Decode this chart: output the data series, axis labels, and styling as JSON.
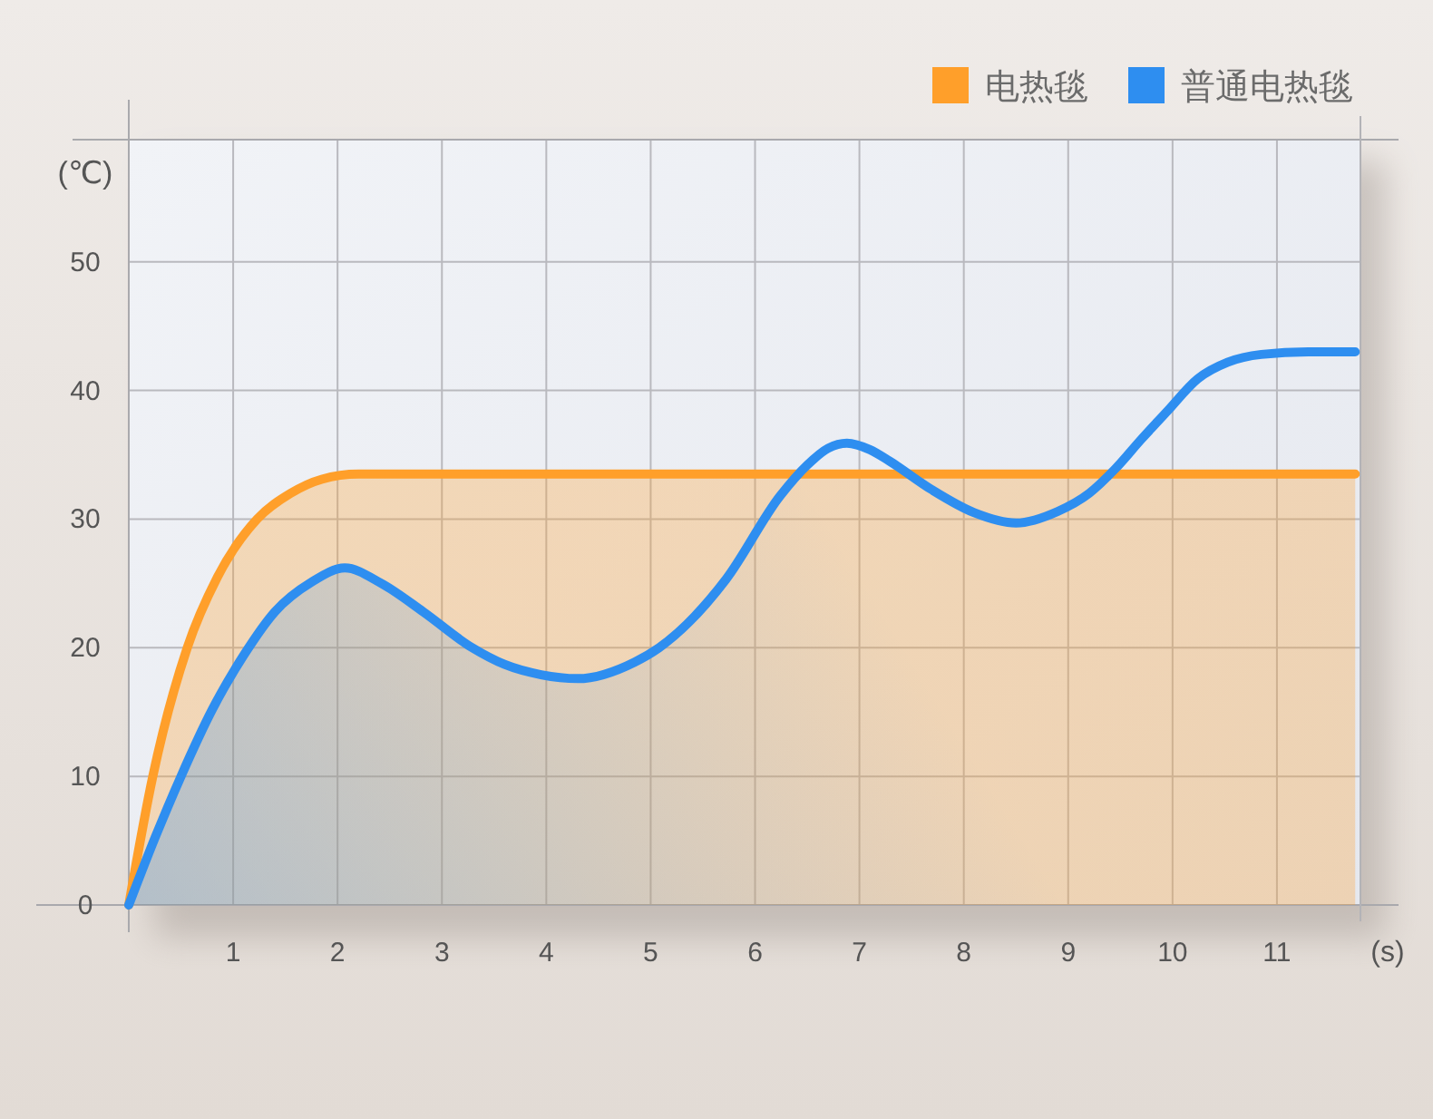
{
  "chart_data": {
    "type": "area",
    "xlabel": "(s)",
    "ylabel": "(℃)",
    "xlim": [
      0,
      11.8
    ],
    "ylim": [
      0,
      59.5
    ],
    "xticks": [
      1,
      2,
      3,
      4,
      5,
      6,
      7,
      8,
      9,
      10,
      11
    ],
    "yticks": [
      0,
      10,
      20,
      30,
      40,
      50
    ],
    "grid": true,
    "legend": "top right",
    "series": [
      {
        "name": "电热毯",
        "color": "#ff9f2a",
        "x": [
          0,
          0.23,
          0.56,
          0.85,
          1.23,
          1.55,
          1.85,
          2.2,
          4,
          6,
          8,
          10,
          11.75
        ],
        "values": [
          0,
          10,
          20,
          25.5,
          30,
          32,
          33.1,
          33.5,
          33.5,
          33.5,
          33.5,
          33.5,
          33.5
        ]
      },
      {
        "name": "普通电热毯",
        "color": "#2e8ef0",
        "x": [
          0,
          0.25,
          0.5,
          0.8,
          1.1,
          1.4,
          1.75,
          2.07,
          2.42,
          2.82,
          3.29,
          3.6,
          3.95,
          4.3,
          4.85,
          5.08,
          5.72,
          6.24,
          6.5,
          6.7,
          6.88,
          7.1,
          7.29,
          7.69,
          8.1,
          8.5,
          8.9,
          9.2,
          9.45,
          9.7,
          9.95,
          10.24,
          10.53,
          10.85,
          11.3,
          11.75
        ],
        "values": [
          0,
          5.2,
          10,
          15.2,
          19.4,
          22.8,
          25.1,
          26.2,
          25,
          22.8,
          20,
          18.7,
          17.9,
          17.6,
          18.9,
          20,
          25.3,
          31.8,
          34.2,
          35.5,
          35.9,
          35.4,
          34.5,
          32.3,
          30.5,
          29.7,
          30.6,
          32,
          33.9,
          36.2,
          38.4,
          40.9,
          42.2,
          42.8,
          43,
          43
        ]
      }
    ]
  }
}
